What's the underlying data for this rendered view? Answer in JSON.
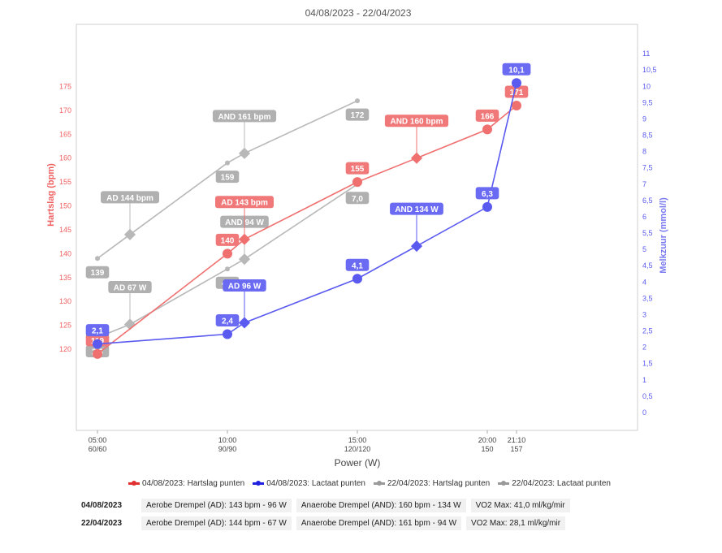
{
  "chart_data": {
    "type": "line",
    "title": "04/08/2023 - 22/04/2023",
    "xlabel": "Power (W)",
    "ylabel_left": "Hartslag (bpm)",
    "ylabel_right": "Melkzuur (mmol/l)",
    "x_ticks": [
      {
        "time": "05:00",
        "label": "60/60"
      },
      {
        "time": "10:00",
        "label": "90/90"
      },
      {
        "time": "15:00",
        "label": "120/120"
      },
      {
        "time": "20:00",
        "label": "150"
      },
      {
        "time": "21:10",
        "label": "157"
      }
    ],
    "y_left_ticks": [
      "120",
      "125",
      "130",
      "135",
      "140",
      "145",
      "150",
      "155",
      "160",
      "165",
      "170",
      "175"
    ],
    "y_right_ticks": [
      "0",
      "0,5",
      "1",
      "1,5",
      "2",
      "2,5",
      "3",
      "3,5",
      "4",
      "4,5",
      "5",
      "5,5",
      "6",
      "6,5",
      "7",
      "7,5",
      "8",
      "8,5",
      "9",
      "9,5",
      "10",
      "10,5",
      "11"
    ],
    "series": [
      {
        "name": "04/08/2023: Hartslag punten",
        "color": "#f07070",
        "axis": "left",
        "points": [
          {
            "x": "05:00",
            "y": 119,
            "label": "119"
          },
          {
            "x": "10:00",
            "y": 140,
            "label": "140"
          },
          {
            "x": "15:00",
            "y": 155,
            "label": "155"
          },
          {
            "x": "20:00",
            "y": 166,
            "label": "166"
          },
          {
            "x": "21:10",
            "y": 171,
            "label": "171"
          }
        ],
        "thresholds": [
          {
            "x": "10:00+",
            "y": 143,
            "label": "AD 143 bpm"
          },
          {
            "x": "15:00+",
            "y": 160,
            "label": "AND 160 bpm"
          }
        ]
      },
      {
        "name": "04/08/2023: Lactaat punten",
        "color": "#5a5af0",
        "axis": "right",
        "points": [
          {
            "x": "05:00",
            "y": 2.1,
            "label": "2,1"
          },
          {
            "x": "10:00",
            "y": 2.4,
            "label": "2,4"
          },
          {
            "x": "15:00",
            "y": 4.1,
            "label": "4,1"
          },
          {
            "x": "20:00",
            "y": 6.3,
            "label": "6,3"
          },
          {
            "x": "21:10",
            "y": 10.1,
            "label": "10,1"
          }
        ],
        "thresholds": [
          {
            "x": "10:00+",
            "y": 2.75,
            "label": "AD 96 W"
          },
          {
            "x": "15:00+",
            "y": 5.1,
            "label": "AND 134 W"
          }
        ]
      },
      {
        "name": "22/04/2023: Hartslag punten",
        "color": "#b8b8b8",
        "axis": "left",
        "points": [
          {
            "x": "05:00",
            "y": 139,
            "label": "139"
          },
          {
            "x": "10:00",
            "y": 159,
            "label": "159"
          },
          {
            "x": "15:00",
            "y": 172,
            "label": "172"
          }
        ],
        "thresholds": [
          {
            "x": "05:00+",
            "y": 144,
            "label": "AD 144 bpm"
          },
          {
            "x": "10:00+",
            "y": 161,
            "label": "AND 161 bpm"
          }
        ]
      },
      {
        "name": "22/04/2023: Lactaat punten",
        "color": "#b8b8b8",
        "axis": "right",
        "points": [
          {
            "x": "05:00",
            "y": 2.3,
            "label": "2,3"
          },
          {
            "x": "10:00",
            "y": 4.4,
            "label": "4,4"
          },
          {
            "x": "15:00",
            "y": 7.0,
            "label": "7,0"
          }
        ],
        "thresholds": [
          {
            "x": "05:00+",
            "y": 2.7,
            "label": "AD 67 W"
          },
          {
            "x": "10:00+",
            "y": 4.7,
            "label": "AND 94 W"
          }
        ]
      }
    ],
    "ylim_left": [
      103,
      188
    ],
    "ylim_right": [
      -0.55,
      11.9
    ],
    "grid": false,
    "legend_position": "bottom"
  },
  "legend": [
    {
      "label": "04/08/2023: Hartslag punten",
      "color": "#e03030"
    },
    {
      "label": "04/08/2023: Lactaat punten",
      "color": "#2020e0"
    },
    {
      "label": "22/04/2023: Hartslag punten",
      "color": "#999999"
    },
    {
      "label": "22/04/2023: Lactaat punten",
      "color": "#999999"
    }
  ],
  "summary": [
    {
      "date": "04/08/2023",
      "ad": "Aerobe Drempel (AD):  143 bpm - 96 W",
      "and": "Anaerobe Drempel (AND):  160 bpm - 134 W",
      "vo2": "VO2 Max:  41,0 ml/kg/mir"
    },
    {
      "date": "22/04/2023",
      "ad": "Aerobe Drempel (AD):  144 bpm - 67 W",
      "and": "Anaerobe Drempel (AND):  161 bpm - 94 W",
      "vo2": "VO2 Max:  28,1 ml/kg/mir"
    }
  ]
}
